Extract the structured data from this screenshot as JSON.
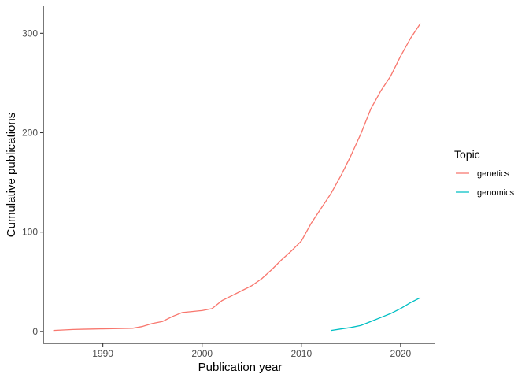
{
  "chart_data": {
    "type": "line",
    "xlabel": "Publication year",
    "ylabel": "Cumulative publications",
    "xlim": [
      1984,
      2023.5
    ],
    "ylim": [
      -12,
      328
    ],
    "xticks": [
      1990,
      2000,
      2010,
      2020
    ],
    "yticks": [
      0,
      100,
      200,
      300
    ],
    "grid": false,
    "legend": {
      "title": "Topic",
      "position": "right"
    },
    "series": [
      {
        "name": "genetics",
        "color": "#F8766D",
        "x": [
          1985,
          1986,
          1987,
          1988,
          1989,
          1990,
          1991,
          1992,
          1993,
          1994,
          1995,
          1996,
          1997,
          1998,
          1999,
          2000,
          2001,
          2002,
          2003,
          2004,
          2005,
          2006,
          2007,
          2008,
          2009,
          2010,
          2011,
          2012,
          2013,
          2014,
          2015,
          2016,
          2017,
          2018,
          2019,
          2020,
          2021,
          2022
        ],
        "y": [
          1,
          1.5,
          2,
          2.2,
          2.4,
          2.6,
          2.8,
          3,
          3.2,
          5,
          8,
          10,
          15,
          19,
          20,
          21,
          23,
          31,
          36,
          41,
          46,
          53,
          62,
          72,
          81,
          91,
          109,
          124,
          139,
          157,
          177,
          199,
          224,
          242,
          257,
          277,
          295,
          310
        ]
      },
      {
        "name": "genomics",
        "color": "#00BFC4",
        "x": [
          2013,
          2014,
          2015,
          2016,
          2017,
          2018,
          2019,
          2020,
          2021,
          2022
        ],
        "y": [
          1,
          2.5,
          4,
          6,
          10,
          14,
          18,
          23,
          29,
          34
        ]
      }
    ]
  }
}
